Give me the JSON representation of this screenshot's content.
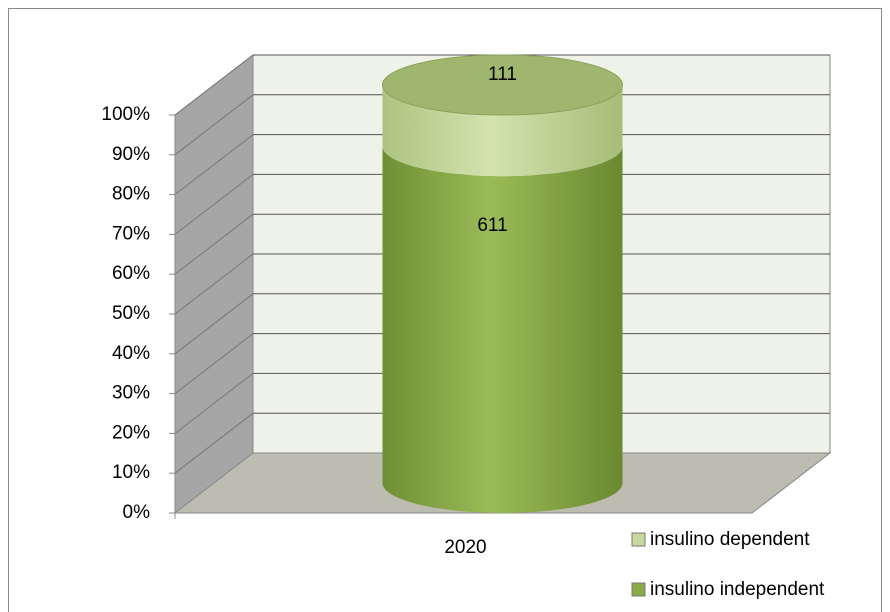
{
  "chart_data": {
    "type": "bar",
    "stacking": "percent",
    "categories": [
      "2020"
    ],
    "series": [
      {
        "name": "insulino independent",
        "color": "#8aaa48",
        "values": [
          611
        ]
      },
      {
        "name": "insulino dependent",
        "color": "#c5d99c",
        "values": [
          111
        ]
      }
    ],
    "ylim": [
      0,
      100
    ],
    "yticks": [
      {
        "value": 0,
        "label": "0%"
      },
      {
        "value": 10,
        "label": "10%"
      },
      {
        "value": 20,
        "label": "20%"
      },
      {
        "value": 30,
        "label": "30%"
      },
      {
        "value": 40,
        "label": "40%"
      },
      {
        "value": 50,
        "label": "50%"
      },
      {
        "value": 60,
        "label": "60%"
      },
      {
        "value": 70,
        "label": "70%"
      },
      {
        "value": 80,
        "label": "80%"
      },
      {
        "value": 90,
        "label": "90%"
      },
      {
        "value": 100,
        "label": "100%"
      }
    ],
    "grid": true,
    "legend": "bottom-right"
  }
}
